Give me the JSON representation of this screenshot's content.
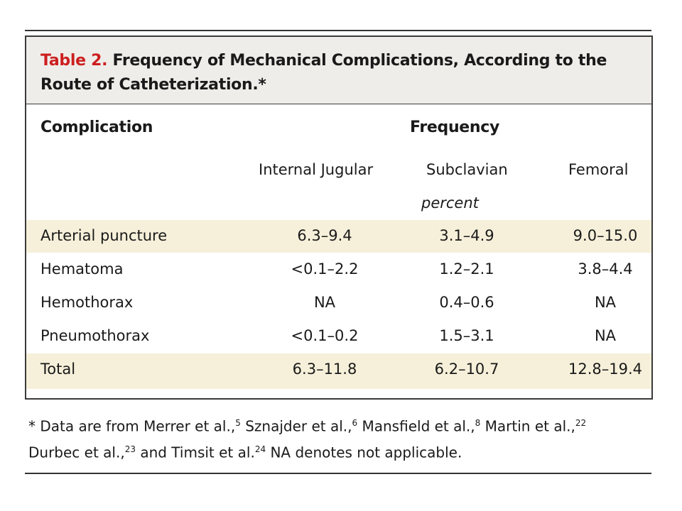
{
  "table": {
    "label": "Table 2.",
    "title": "Frequency of Mechanical Complications, According to the Route of Catheterization.",
    "title_marker": "*",
    "header_complication": "Complication",
    "header_frequency": "Frequency",
    "columns": [
      "Internal Jugular",
      "Subclavian",
      "Femoral"
    ],
    "unit": "percent",
    "rows": [
      {
        "label": "Arterial puncture",
        "values": [
          "6.3–9.4",
          "3.1–4.9",
          "9.0–15.0"
        ]
      },
      {
        "label": "Hematoma",
        "values": [
          "<0.1–2.2",
          "1.2–2.1",
          "3.8–4.4"
        ]
      },
      {
        "label": "Hemothorax",
        "values": [
          "NA",
          "0.4–0.6",
          "NA"
        ]
      },
      {
        "label": "Pneumothorax",
        "values": [
          "<0.1–0.2",
          "1.5–3.1",
          "NA"
        ]
      },
      {
        "label": "Total",
        "values": [
          "6.3–11.8",
          "6.2–10.7",
          "12.8–19.4"
        ]
      }
    ]
  },
  "footnote": {
    "marker": "*",
    "parts": [
      {
        "text": " Data are from Merrer et al.,",
        "sup": "5"
      },
      {
        "text": " Sznajder et al.,",
        "sup": "6"
      },
      {
        "text": " Mansfield et al.,",
        "sup": "8"
      },
      {
        "text": " Martin et al.,",
        "sup": "22"
      },
      {
        "text": " Durbec et al.,",
        "sup": "23"
      },
      {
        "text": " and Timsit et al.",
        "sup": "24"
      }
    ],
    "tail": " NA denotes not applicable."
  },
  "colors": {
    "label_red": "#cc1f1f",
    "title_band": "#efedea",
    "row_shade": "#f6f0da"
  }
}
